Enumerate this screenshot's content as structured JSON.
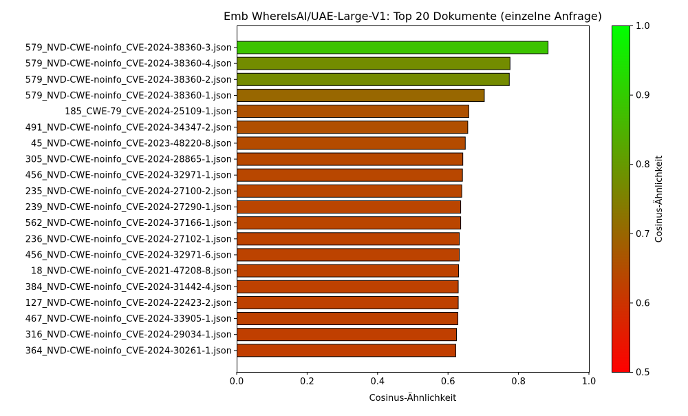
{
  "chart_data": {
    "type": "bar",
    "orientation": "horizontal",
    "title": "Emb WhereIsAI/UAE-Large-V1: Top 20 Dokumente (einzelne Anfrage)",
    "xlabel": "Cosinus-Ähnlichkeit",
    "ylabel": "",
    "xlim": [
      0.0,
      1.0
    ],
    "xticks": [
      "0.0",
      "0.2",
      "0.4",
      "0.6",
      "0.8",
      "1.0"
    ],
    "grid": false,
    "categories": [
      "579_NVD-CWE-noinfo_CVE-2024-38360-3.json",
      "579_NVD-CWE-noinfo_CVE-2024-38360-4.json",
      "579_NVD-CWE-noinfo_CVE-2024-38360-2.json",
      "579_NVD-CWE-noinfo_CVE-2024-38360-1.json",
      "185_CWE-79_CVE-2024-25109-1.json",
      "491_NVD-CWE-noinfo_CVE-2024-34347-2.json",
      "45_NVD-CWE-noinfo_CVE-2023-48220-8.json",
      "305_NVD-CWE-noinfo_CVE-2024-28865-1.json",
      "456_NVD-CWE-noinfo_CVE-2024-32971-1.json",
      "235_NVD-CWE-noinfo_CVE-2024-27100-2.json",
      "239_NVD-CWE-noinfo_CVE-2024-27290-1.json",
      "562_NVD-CWE-noinfo_CVE-2024-37166-1.json",
      "236_NVD-CWE-noinfo_CVE-2024-27102-1.json",
      "456_NVD-CWE-noinfo_CVE-2024-32971-6.json",
      "18_NVD-CWE-noinfo_CVE-2021-47208-8.json",
      "384_NVD-CWE-noinfo_CVE-2024-31442-4.json",
      "127_NVD-CWE-noinfo_CVE-2024-22423-2.json",
      "467_NVD-CWE-noinfo_CVE-2024-33905-1.json",
      "316_NVD-CWE-noinfo_CVE-2024-29034-1.json",
      "364_NVD-CWE-noinfo_CVE-2024-30261-1.json"
    ],
    "values": [
      0.883,
      0.775,
      0.773,
      0.702,
      0.658,
      0.655,
      0.648,
      0.641,
      0.64,
      0.638,
      0.635,
      0.635,
      0.631,
      0.631,
      0.629,
      0.628,
      0.628,
      0.627,
      0.623,
      0.621
    ],
    "colorbar": {
      "label": "Cosinus-Ähnlichkeit",
      "range": [
        0.5,
        1.0
      ],
      "ticks": [
        "0.5",
        "0.6",
        "0.7",
        "0.8",
        "0.9",
        "1.0"
      ],
      "low_color": "#ff0000",
      "high_color": "#00ff00"
    },
    "bar_edge_color": "#000000"
  }
}
